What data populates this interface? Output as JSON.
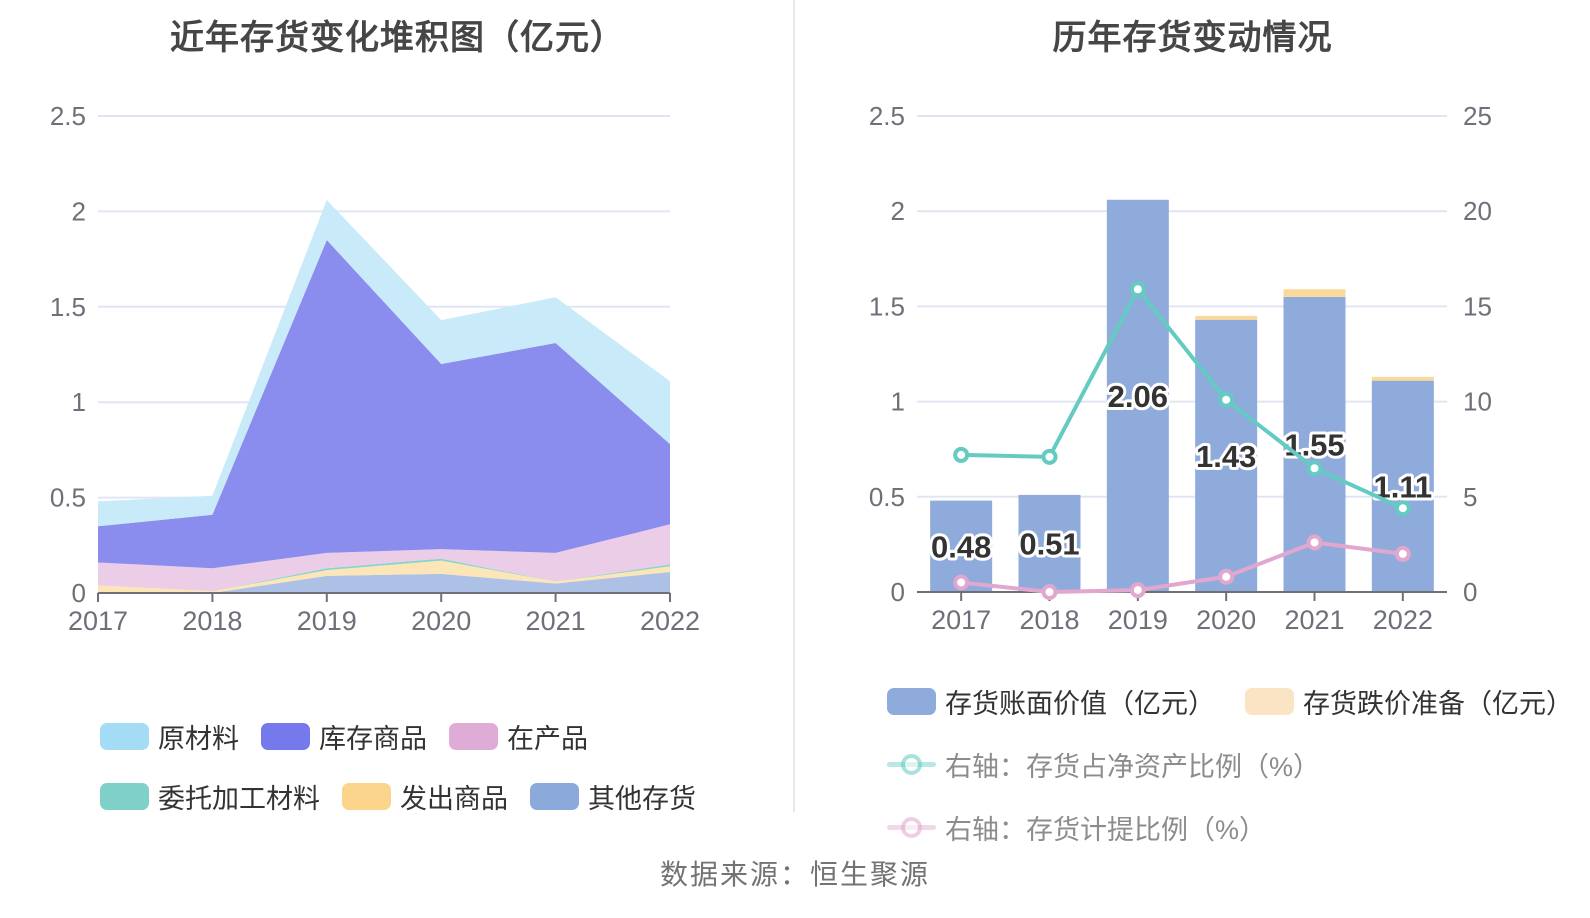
{
  "source": "数据来源：恒生聚源",
  "colors": {
    "background": "#FFFFFF",
    "grid_line": "#E0E6F1",
    "axis_line": "#6E7079",
    "axis_text": "#6E7079",
    "title_text": "#464646",
    "legend_text": "#333333",
    "legend_text_muted": "#8C8C8C",
    "bar_label_text": "#333333",
    "source_text": "#737373",
    "divider": "#E8E8E8"
  },
  "chart_data": [
    {
      "type": "area",
      "title": "近年存货变化堆积图（亿元）",
      "stacked": true,
      "categories": [
        "2017",
        "2018",
        "2019",
        "2020",
        "2021",
        "2022"
      ],
      "y_ticks": [
        "0",
        "0.5",
        "1",
        "1.5",
        "2",
        "2.5"
      ],
      "ylim": [
        0,
        2.5
      ],
      "grid": true,
      "legend_position": "bottom",
      "series": [
        {
          "name": "其他存货",
          "color": "#8CA9DB",
          "area_color": "#ACC1E5",
          "values": [
            0.0,
            0.0,
            0.09,
            0.1,
            0.05,
            0.11
          ]
        },
        {
          "name": "发出商品",
          "color": "#FBD58C",
          "area_color": "#FCE5B7",
          "values": [
            0.04,
            0.01,
            0.03,
            0.07,
            0.01,
            0.03
          ]
        },
        {
          "name": "委托加工材料",
          "color": "#7FD0C9",
          "area_color": "#8BD4CE",
          "values": [
            0.0,
            0.0,
            0.01,
            0.01,
            0.0,
            0.01
          ]
        },
        {
          "name": "在产品",
          "color": "#DFABD7",
          "area_color": "#ECCDE7",
          "values": [
            0.12,
            0.12,
            0.08,
            0.05,
            0.15,
            0.21
          ]
        },
        {
          "name": "库存商品",
          "color": "#7679EB",
          "area_color": "#8A8DEE",
          "values": [
            0.19,
            0.28,
            1.64,
            0.97,
            1.1,
            0.42
          ]
        },
        {
          "name": "原材料",
          "color": "#A5DCF5",
          "area_color": "#C9EAF9",
          "values": [
            0.13,
            0.1,
            0.21,
            0.23,
            0.24,
            0.33
          ]
        }
      ],
      "legend_rows": [
        [
          "原材料",
          "库存商品",
          "在产品"
        ],
        [
          "委托加工材料",
          "发出商品",
          "其他存货"
        ]
      ]
    },
    {
      "type": "bar",
      "title": "历年存货变动情况",
      "categories": [
        "2017",
        "2018",
        "2019",
        "2020",
        "2021",
        "2022"
      ],
      "left_y_ticks": [
        "0",
        "0.5",
        "1",
        "1.5",
        "2",
        "2.5"
      ],
      "right_y_ticks": [
        "0",
        "5",
        "10",
        "15",
        "20",
        "25"
      ],
      "left_ylim": [
        0,
        2.5
      ],
      "right_ylim": [
        0,
        25
      ],
      "grid": true,
      "legend_position": "bottom",
      "bars": {
        "name": "存货账面价值（亿元）",
        "color": "#8FABDC",
        "values": [
          0.48,
          0.51,
          2.06,
          1.43,
          1.55,
          1.11
        ],
        "labels": [
          "0.48",
          "0.51",
          "2.06",
          "1.43",
          "1.55",
          "1.11"
        ]
      },
      "provision": {
        "name": "存货跌价准备（亿元）",
        "color": "#FBD99B",
        "legend_color": "#FAE4C4",
        "values": [
          0.0,
          0.0,
          0.0,
          0.02,
          0.04,
          0.02
        ]
      },
      "lines": [
        {
          "name": "右轴：存货占净资产比例（%）",
          "color": "#63CBC2",
          "axis": "right",
          "values": [
            7.2,
            7.1,
            15.9,
            10.1,
            6.5,
            4.4
          ]
        },
        {
          "name": "右轴：存货计提比例（%）",
          "color": "#E2A7CE",
          "axis": "right",
          "values": [
            0.5,
            0.0,
            0.1,
            0.8,
            2.6,
            2.0
          ]
        }
      ]
    }
  ]
}
